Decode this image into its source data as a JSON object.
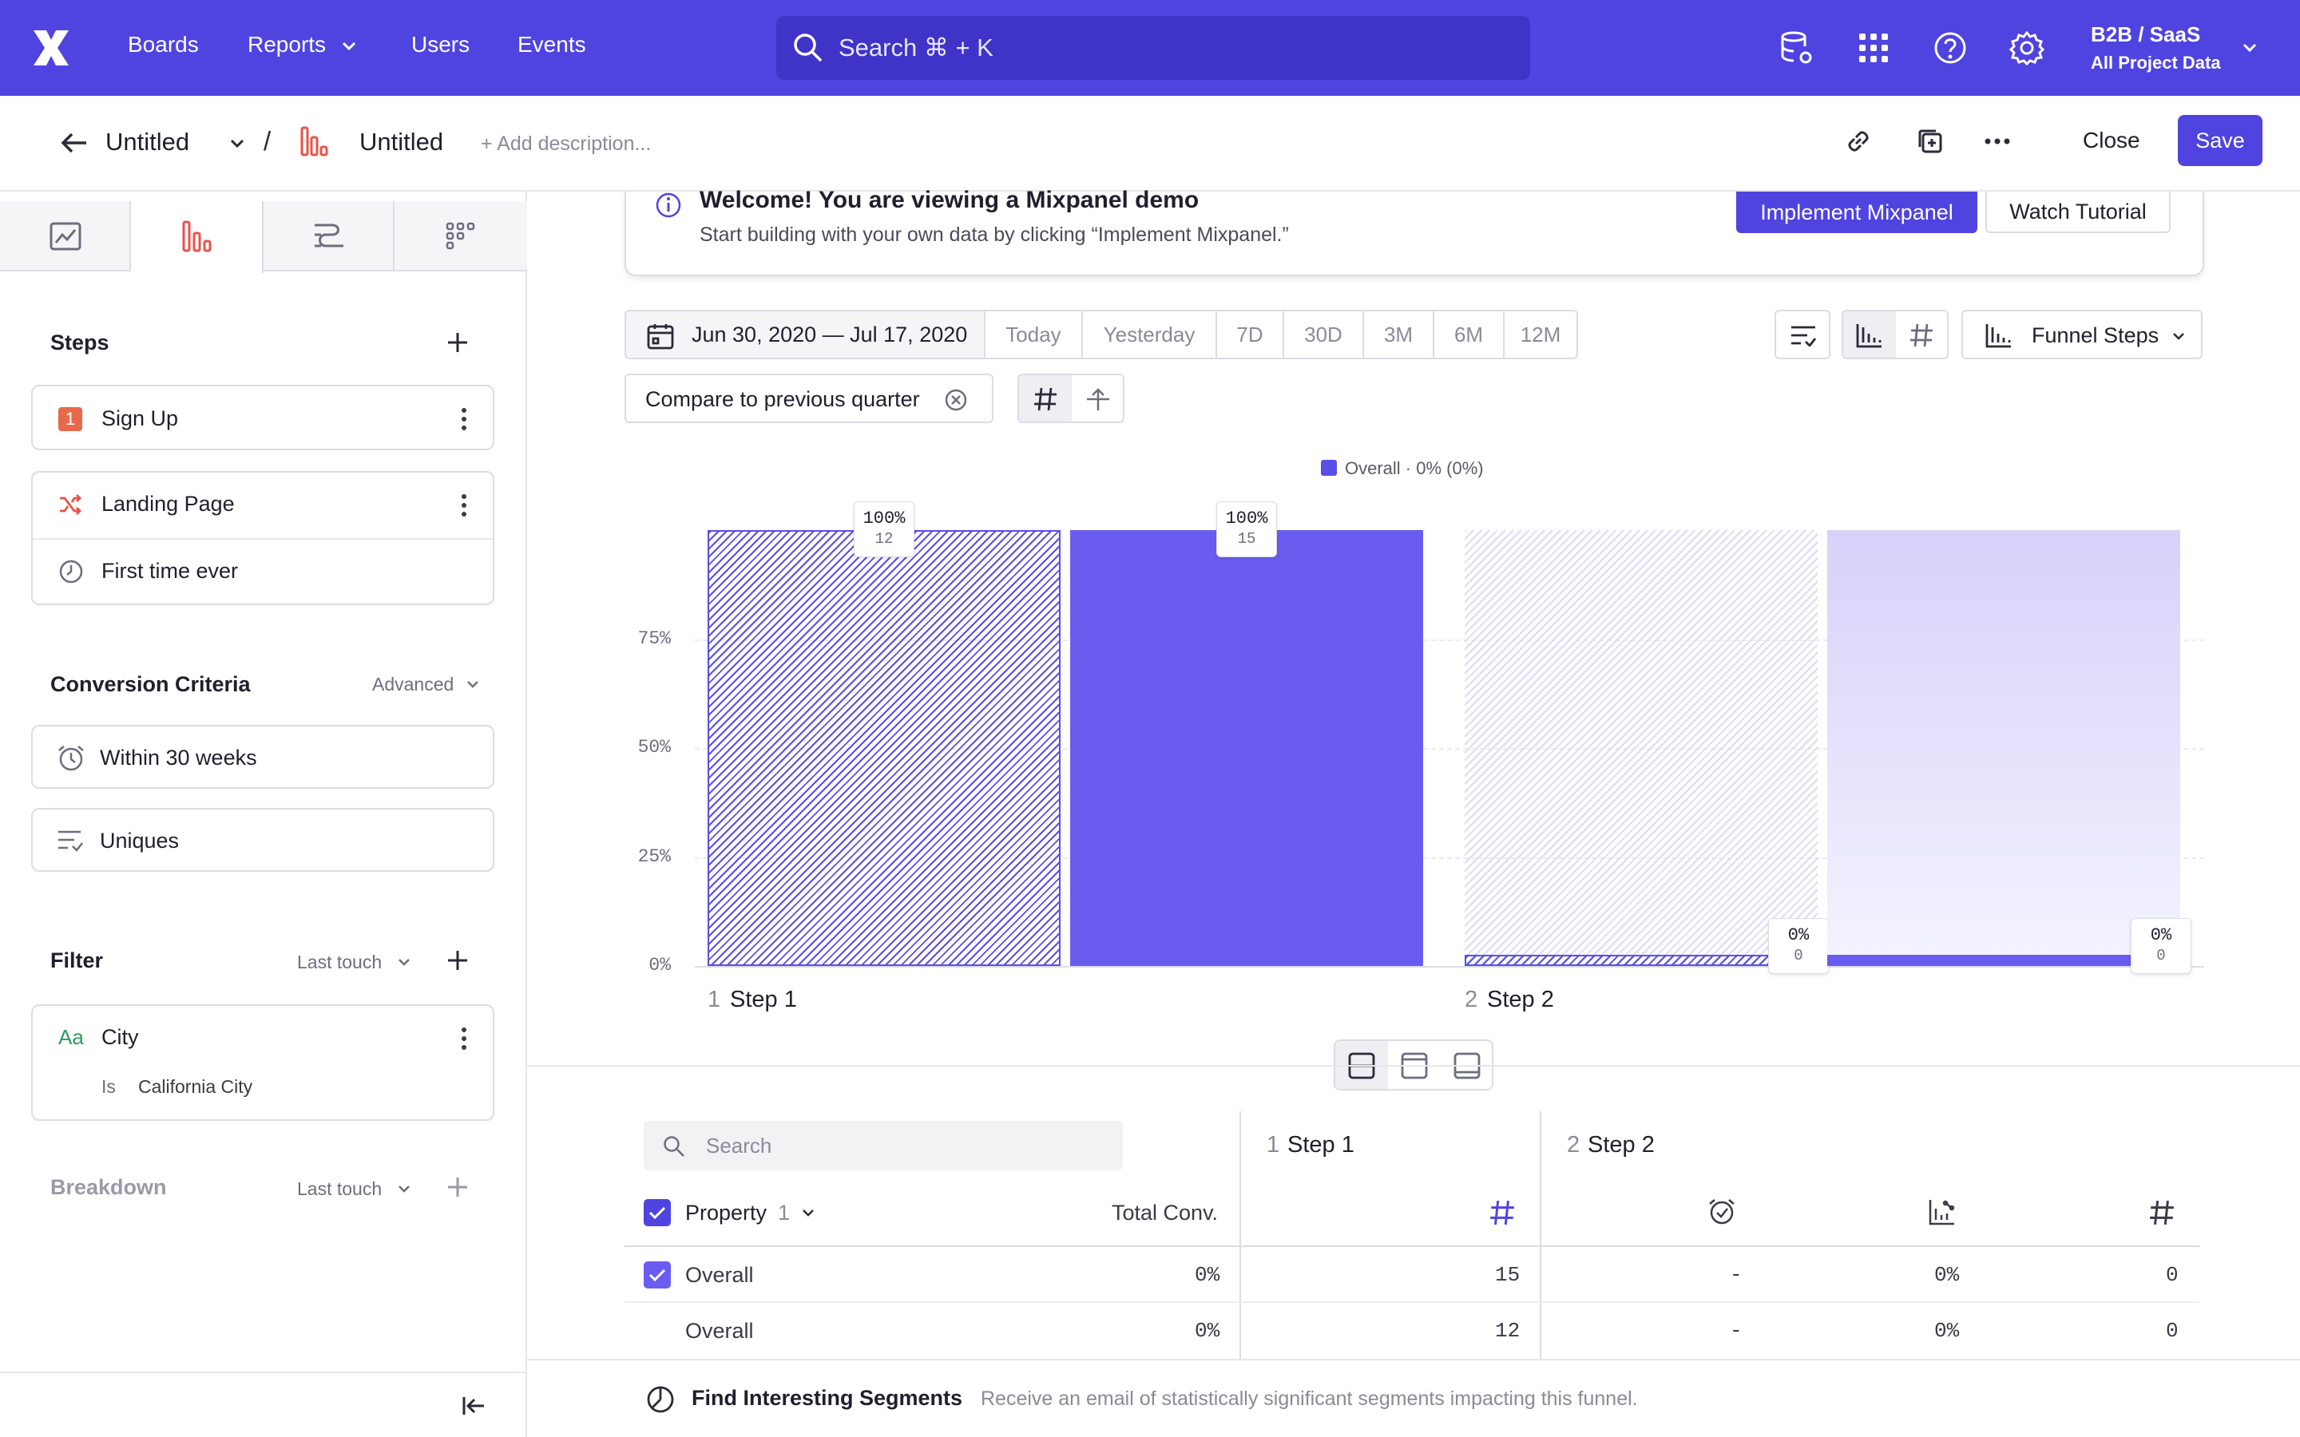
{
  "topnav": {
    "boards": "Boards",
    "reports": "Reports",
    "users": "Users",
    "events": "Events",
    "search_placeholder": "Search  ⌘ + K",
    "project_name": "B2B / SaaS",
    "project_sub": "All Project Data"
  },
  "header": {
    "back_title": "Untitled",
    "report_title": "Untitled",
    "add_description": "+ Add description...",
    "close": "Close",
    "save": "Save"
  },
  "sidebar": {
    "steps_title": "Steps",
    "step1_index": "1",
    "step1_label": "Sign Up",
    "step2_label": "Landing Page",
    "step2_filter": "First time ever",
    "conversion_title": "Conversion Criteria",
    "advanced": "Advanced",
    "within": "Within 30 weeks",
    "uniques": "Uniques",
    "filter_title": "Filter",
    "last_touch": "Last touch",
    "city_prefix": "Aa",
    "city": "City",
    "is": "Is",
    "city_value": "California City",
    "breakdown_title": "Breakdown",
    "breakdown_touch": "Last touch"
  },
  "banner": {
    "title": "Welcome! You are viewing a Mixpanel demo",
    "subtitle": "Start building with your own data by clicking “Implement Mixpanel.”",
    "implement": "Implement Mixpanel",
    "tutorial": "Watch Tutorial"
  },
  "controls": {
    "date_range": "Jun 30, 2020 — Jul 17, 2020",
    "today": "Today",
    "yesterday": "Yesterday",
    "d7": "7D",
    "d30": "30D",
    "m3": "3M",
    "m6": "6M",
    "m12": "12M",
    "compare": "Compare to previous quarter",
    "funnel_steps": "Funnel Steps"
  },
  "chart_data": {
    "type": "bar",
    "legend": "Overall · 0% (0%)",
    "categories": [
      "Step 1",
      "Step 2"
    ],
    "category_indices": [
      "1",
      "2"
    ],
    "yticks": [
      "0%",
      "25%",
      "50%",
      "75%"
    ],
    "ylim": [
      0,
      100
    ],
    "series": [
      {
        "name": "Overall",
        "values": [
          100,
          0
        ],
        "counts": [
          12,
          0
        ],
        "labels": [
          "100%",
          "0%"
        ],
        "style": "hatched"
      },
      {
        "name": "Overall",
        "values": [
          100,
          0
        ],
        "counts": [
          15,
          0
        ],
        "labels": [
          "100%",
          "0%"
        ],
        "style": "solid"
      }
    ],
    "colors": {
      "primary": "#5b4ee6"
    }
  },
  "table": {
    "search_placeholder": "Search",
    "property_label": "Property",
    "property_count": "1",
    "total_conv": "Total Conv.",
    "step1_index": "1",
    "step1": "Step 1",
    "step2_index": "2",
    "step2": "Step 2",
    "rows": [
      {
        "name": "Overall",
        "total": "0%",
        "s1": "15",
        "s2a": "-",
        "s2b": "0%",
        "s2c": "0"
      },
      {
        "name": "Overall",
        "total": "0%",
        "s1": "12",
        "s2a": "-",
        "s2b": "0%",
        "s2c": "0"
      }
    ]
  },
  "footer": {
    "title": "Find Interesting Segments",
    "desc": "Receive an email of statistically significant segments impacting this funnel."
  }
}
